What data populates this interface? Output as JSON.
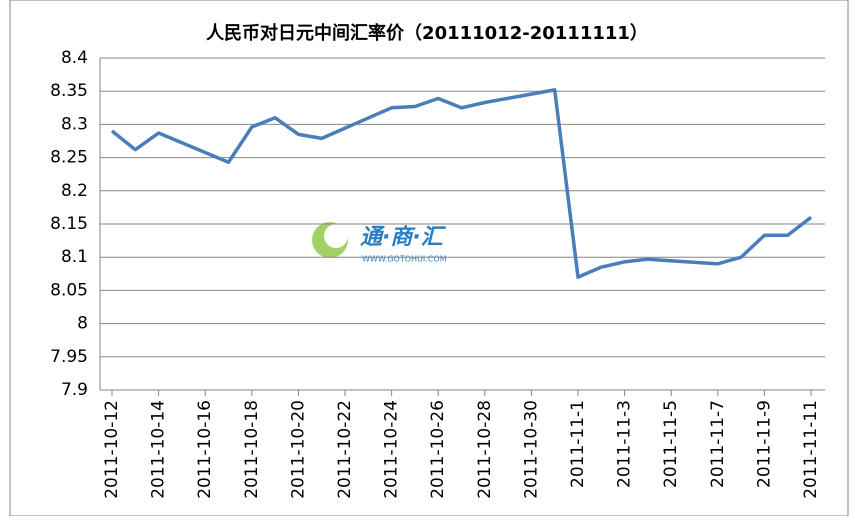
{
  "chart_data": {
    "type": "line",
    "title": "人民币对日元中间汇率价（20111012-20111111）",
    "watermark": {
      "name": "通·商·汇",
      "url": "WWW.GOTOHUI.COM"
    },
    "x": [
      "2011-10-12",
      "2011-10-13",
      "2011-10-14",
      "2011-10-17",
      "2011-10-18",
      "2011-10-19",
      "2011-10-20",
      "2011-10-21",
      "2011-10-24",
      "2011-10-25",
      "2011-10-26",
      "2011-10-27",
      "2011-10-28",
      "2011-10-31",
      "2011-11-01",
      "2011-11-02",
      "2011-11-03",
      "2011-11-04",
      "2011-11-07",
      "2011-11-08",
      "2011-11-09",
      "2011-11-10",
      "2011-11-11"
    ],
    "series": [
      {
        "name": "人民币对日元",
        "color": "#4a7ebb",
        "values": [
          8.29,
          8.262,
          8.287,
          8.243,
          8.296,
          8.31,
          8.285,
          8.279,
          8.325,
          8.327,
          8.339,
          8.325,
          8.333,
          8.352,
          8.07,
          8.085,
          8.093,
          8.097,
          8.09,
          8.1,
          8.133,
          8.133,
          8.16
        ]
      }
    ],
    "xlim": [
      "2011-10-12",
      "2011-11-11"
    ],
    "xticks": [
      "2011-10-12",
      "2011-10-14",
      "2011-10-16",
      "2011-10-18",
      "2011-10-20",
      "2011-10-22",
      "2011-10-24",
      "2011-10-26",
      "2011-10-28",
      "2011-10-30",
      {
        "value": "2011-11-01",
        "label": "2011-11-1"
      },
      {
        "value": "2011-11-03",
        "label": "2011-11-3"
      },
      {
        "value": "2011-11-05",
        "label": "2011-11-5"
      },
      {
        "value": "2011-11-07",
        "label": "2011-11-7"
      },
      {
        "value": "2011-11-09",
        "label": "2011-11-9"
      },
      "2011-11-11"
    ],
    "ylim": [
      7.9,
      8.4
    ],
    "yticks": [
      8.4,
      8.35,
      8.3,
      8.25,
      8.2,
      8.15,
      8.1,
      8.05,
      8,
      7.95,
      7.9
    ],
    "grid": true
  }
}
